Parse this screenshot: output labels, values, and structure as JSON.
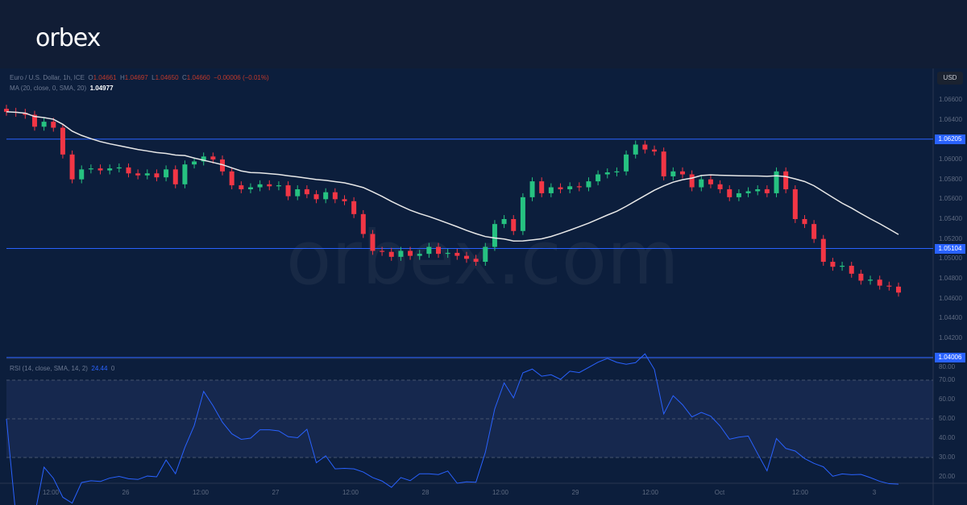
{
  "brand": {
    "logo": "orbex",
    "watermark": "orbex.com"
  },
  "legend": {
    "symbol": "Euro / U.S. Dollar, 1h, ICE",
    "o_label": "O",
    "o": "1.04661",
    "h_label": "H",
    "h": "1.04697",
    "l_label": "L",
    "l": "1.04650",
    "c_label": "C",
    "c": "1.04660",
    "change": "−0.00006 (−0.01%)",
    "ma_label": "MA (20, close, 0, SMA, 20)",
    "ma_value": "1.04977",
    "rsi_label": "RSI (14, close, SMA, 14, 2)",
    "rsi_value": "24.44",
    "rsi_extra": "0"
  },
  "currency": "USD",
  "colors": {
    "up": "#26c281",
    "down": "#f23645",
    "line": "#2962ff",
    "ma": "#e8e8e8",
    "rsi": "#2962ff"
  },
  "chart_data": {
    "type": "candlestick",
    "title": "Euro / U.S. Dollar, 1h",
    "closes": [
      1.0648,
      1.0647,
      1.0645,
      1.0633,
      1.0638,
      1.0632,
      1.0605,
      1.058,
      1.059,
      1.0591,
      1.0589,
      1.0591,
      1.0592,
      1.0586,
      1.0584,
      1.0586,
      1.0582,
      1.059,
      1.0575,
      1.0595,
      1.0598,
      1.0603,
      1.06,
      1.0588,
      1.0574,
      1.057,
      1.0572,
      1.0575,
      1.0573,
      1.0574,
      1.0563,
      1.057,
      1.0565,
      1.056,
      1.0567,
      1.056,
      1.0558,
      1.0545,
      1.0525,
      1.0508,
      1.0507,
      1.0502,
      1.0508,
      1.0503,
      1.0505,
      1.0512,
      1.0505,
      1.0506,
      1.0503,
      1.05,
      1.0497,
      1.0512,
      1.0535,
      1.054,
      1.0528,
      1.0562,
      1.0578,
      1.0566,
      1.0572,
      1.057,
      1.0573,
      1.0572,
      1.0578,
      1.0585,
      1.0587,
      1.0588,
      1.0605,
      1.0615,
      1.061,
      1.0608,
      1.0583,
      1.0588,
      1.0585,
      1.0572,
      1.058,
      1.0575,
      1.057,
      1.0562,
      1.0566,
      1.0568,
      1.057,
      1.0566,
      1.0588,
      1.057,
      1.054,
      1.0535,
      1.052,
      1.0497,
      1.0492,
      1.0493,
      1.0485,
      1.0478,
      1.0479,
      1.0473,
      1.0472,
      1.0466
    ],
    "ylim": [
      1.04,
      1.067
    ],
    "y_ticks": [
      "1.06600",
      "1.06400",
      "1.06000",
      "1.05800",
      "1.05600",
      "1.05400",
      "1.05200",
      "1.05000",
      "1.04800",
      "1.04600",
      "1.04400",
      "1.04200"
    ],
    "y_tick_values": [
      1.066,
      1.064,
      1.06,
      1.058,
      1.056,
      1.054,
      1.052,
      1.05,
      1.048,
      1.046,
      1.044,
      1.042
    ],
    "levels": [
      {
        "value": 1.06205,
        "label": "1.06205"
      },
      {
        "value": 1.05104,
        "label": "1.05104"
      },
      {
        "value": 1.04006,
        "label": "1.04006"
      }
    ],
    "x_ticks": [
      "12:00",
      "26",
      "12:00",
      "27",
      "12:00",
      "28",
      "12:00",
      "29",
      "12:00",
      "Oct",
      "12:00",
      "3"
    ],
    "rsi_ticks": [
      "80.00",
      "70.00",
      "60.00",
      "50.00",
      "40.00",
      "30.00",
      "20.00"
    ],
    "rsi_tick_values": [
      80,
      70,
      60,
      50,
      40,
      30,
      20
    ],
    "rsi_band": [
      30,
      70
    ]
  }
}
